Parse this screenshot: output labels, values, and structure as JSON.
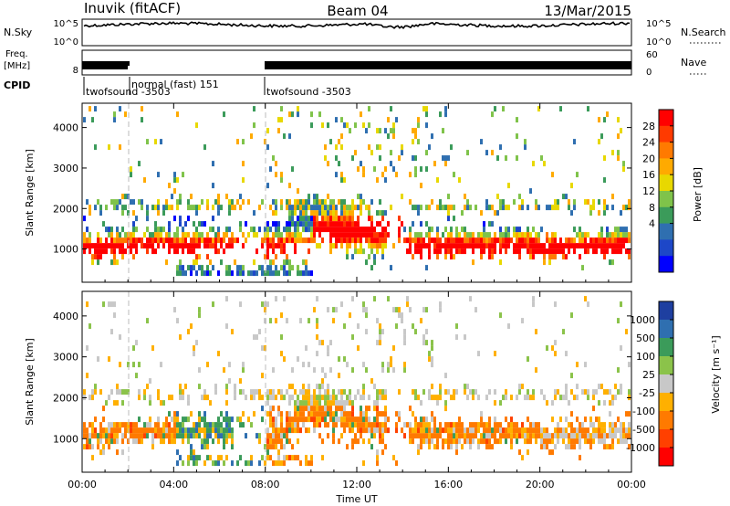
{
  "header": {
    "station": "Inuvik (fitACF)",
    "beam": "Beam 04",
    "date": "13/Mar/2015"
  },
  "aux_panels": {
    "nsky_label": "N.Sky",
    "nsky_ticks": [
      "10^5",
      "10^0"
    ],
    "nsearch_label": "N.Search",
    "nsearch_ticks": [
      "10^5",
      "10^0"
    ],
    "freq_label": "Freq.",
    "freq_unit": "[MHz]",
    "freq_ticks": [
      "8"
    ],
    "nave_label": "Nave",
    "nave_ticks": [
      "60",
      "0"
    ],
    "cpid_label": "CPID",
    "cpid_segments": [
      {
        "label": "twofsound -3503",
        "start_h": 0,
        "end_h": 2
      },
      {
        "label": "normal (fast) 151",
        "start_h": 2,
        "end_h": 8
      },
      {
        "label": "twofsound -3503",
        "start_h": 8,
        "end_h": 24
      }
    ]
  },
  "chart_data": [
    {
      "type": "heatmap",
      "title": "",
      "ylabel": "Slant Range [km]",
      "xlabel": "",
      "xlim_hours": [
        0,
        24
      ],
      "ylim": [
        180,
        4600
      ],
      "yticks": [
        1000,
        2000,
        3000,
        4000
      ],
      "colorbar": {
        "label": "Power [dB]",
        "ticks": [
          "28",
          "24",
          "20",
          "16",
          "12",
          "8",
          "4"
        ],
        "colors": [
          "#ff0000",
          "#ff3a00",
          "#ff7a00",
          "#ffaa00",
          "#e8d800",
          "#7fc34a",
          "#3b9b5a",
          "#2f6fb0",
          "#1d47c8",
          "#0000ff"
        ]
      }
    },
    {
      "type": "heatmap",
      "title": "",
      "ylabel": "Slant Range [km]",
      "xlabel": "Time UT",
      "xlim_hours": [
        0,
        24
      ],
      "ylim": [
        180,
        4600
      ],
      "yticks": [
        1000,
        2000,
        3000,
        4000
      ],
      "xticks": [
        "00:00",
        "04:00",
        "08:00",
        "12:00",
        "16:00",
        "20:00",
        "00:00"
      ],
      "colorbar": {
        "label": "Velocity [m s⁻¹]",
        "ticks": [
          "1000",
          "500",
          "100",
          "25",
          "-25",
          "-100",
          "-500",
          "-1000"
        ],
        "colors": [
          "#1e3fa0",
          "#2f6fb0",
          "#3b9b5a",
          "#8bc34a",
          "#c8c8c8",
          "#ffb000",
          "#ff7a00",
          "#ff4000",
          "#ff0000"
        ]
      }
    }
  ]
}
